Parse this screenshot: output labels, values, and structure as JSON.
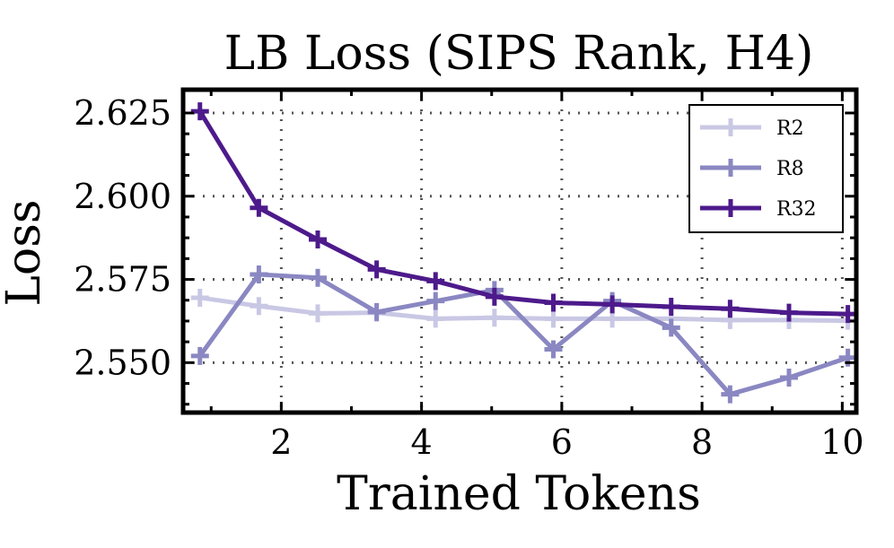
{
  "chart_data": {
    "type": "line",
    "title": "LB Loss (SIPS Rank, H4)",
    "xlabel": "Trained Tokens",
    "ylabel": "Loss",
    "xlim": [
      0.6,
      10.2
    ],
    "ylim": [
      2.535,
      2.632
    ],
    "xticks": [
      2,
      4,
      6,
      8,
      10
    ],
    "xtick_labels": [
      "2",
      "4",
      "6",
      "8",
      "10"
    ],
    "yticks": [
      2.55,
      2.575,
      2.6,
      2.625
    ],
    "ytick_labels": [
      "2.550",
      "2.575",
      "2.600",
      "2.625"
    ],
    "grid": true,
    "legend_position": "top-right",
    "marker": "plus",
    "x": [
      0.84,
      1.68,
      2.52,
      3.36,
      4.2,
      5.04,
      5.88,
      6.72,
      7.56,
      8.4,
      9.24,
      10.08
    ],
    "series": [
      {
        "name": "R2",
        "color": "#c9c8e4",
        "values": [
          2.5695,
          2.567,
          2.5648,
          2.565,
          2.5632,
          2.5635,
          2.5632,
          2.5632,
          2.5632,
          2.5628,
          2.5628,
          2.5626
        ]
      },
      {
        "name": "R8",
        "color": "#8a87c2",
        "values": [
          2.552,
          2.5765,
          2.5755,
          2.5652,
          2.5685,
          2.5718,
          2.554,
          2.5685,
          2.5605,
          2.5405,
          2.5455,
          2.5515
        ]
      },
      {
        "name": "R32",
        "color": "#4d1a8b",
        "values": [
          2.6255,
          2.5965,
          2.587,
          2.578,
          2.5745,
          2.5698,
          2.568,
          2.5675,
          2.5668,
          2.5662,
          2.565,
          2.5646
        ]
      }
    ]
  }
}
